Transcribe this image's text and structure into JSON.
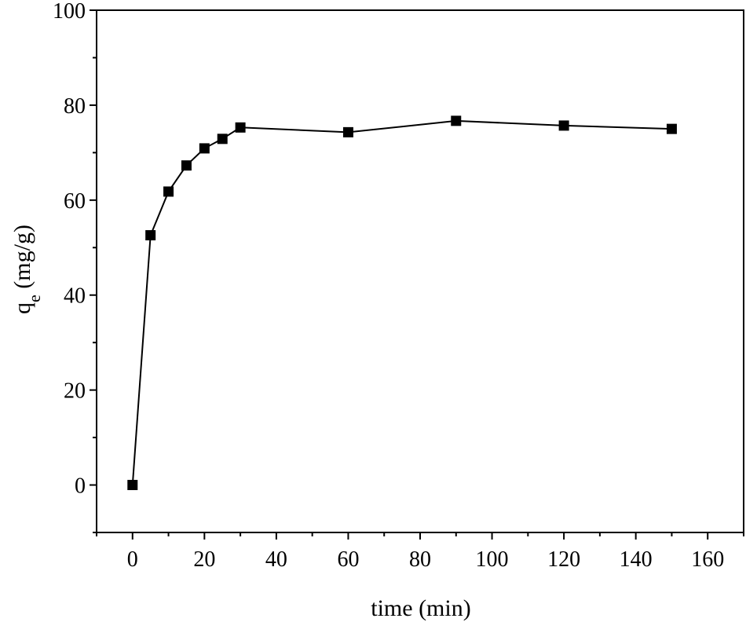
{
  "chart_data": {
    "type": "line",
    "xlabel": "time (min)",
    "ylabel_main": "q",
    "ylabel_sub": "e",
    "ylabel_unit": " (mg/g)",
    "xlim": [
      -10,
      170
    ],
    "ylim": [
      -10,
      100
    ],
    "x_ticks": [
      "0",
      "20",
      "40",
      "60",
      "80",
      "100",
      "120",
      "140",
      "160"
    ],
    "y_ticks": [
      "0",
      "20",
      "40",
      "60",
      "80",
      "100"
    ],
    "grid": false,
    "marker": "square",
    "series": [
      {
        "x": [
          0,
          5,
          10,
          15,
          20,
          25,
          30,
          60,
          90,
          120,
          150
        ],
        "values": [
          0,
          52.6,
          61.8,
          67.3,
          70.9,
          72.9,
          75.3,
          74.3,
          76.7,
          75.7,
          75.0
        ]
      }
    ]
  }
}
